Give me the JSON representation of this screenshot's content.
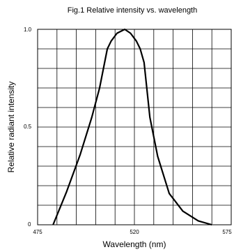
{
  "chart_data": {
    "type": "line",
    "title": "Fig.1 Relative intensity vs. wavelength",
    "xlabel": "Wavelength (nm)",
    "ylabel": "Relative radiant intensity",
    "xlim": [
      475,
      575
    ],
    "ylim": [
      0,
      1.0
    ],
    "x_tick_labels": [
      "475",
      "520",
      "575"
    ],
    "y_tick_labels": [
      "0",
      "0.5",
      "1.0"
    ],
    "grid": true,
    "series": [
      {
        "x": [
          483,
          490,
          497,
          503,
          507,
          511,
          513,
          516,
          520,
          523,
          526,
          528,
          530,
          533,
          537,
          543,
          550,
          558,
          565
        ],
        "y": [
          0.0,
          0.17,
          0.36,
          0.55,
          0.7,
          0.9,
          0.94,
          0.98,
          1.0,
          0.98,
          0.94,
          0.9,
          0.83,
          0.55,
          0.35,
          0.16,
          0.07,
          0.02,
          0.0
        ],
        "color": "#000000"
      }
    ]
  }
}
